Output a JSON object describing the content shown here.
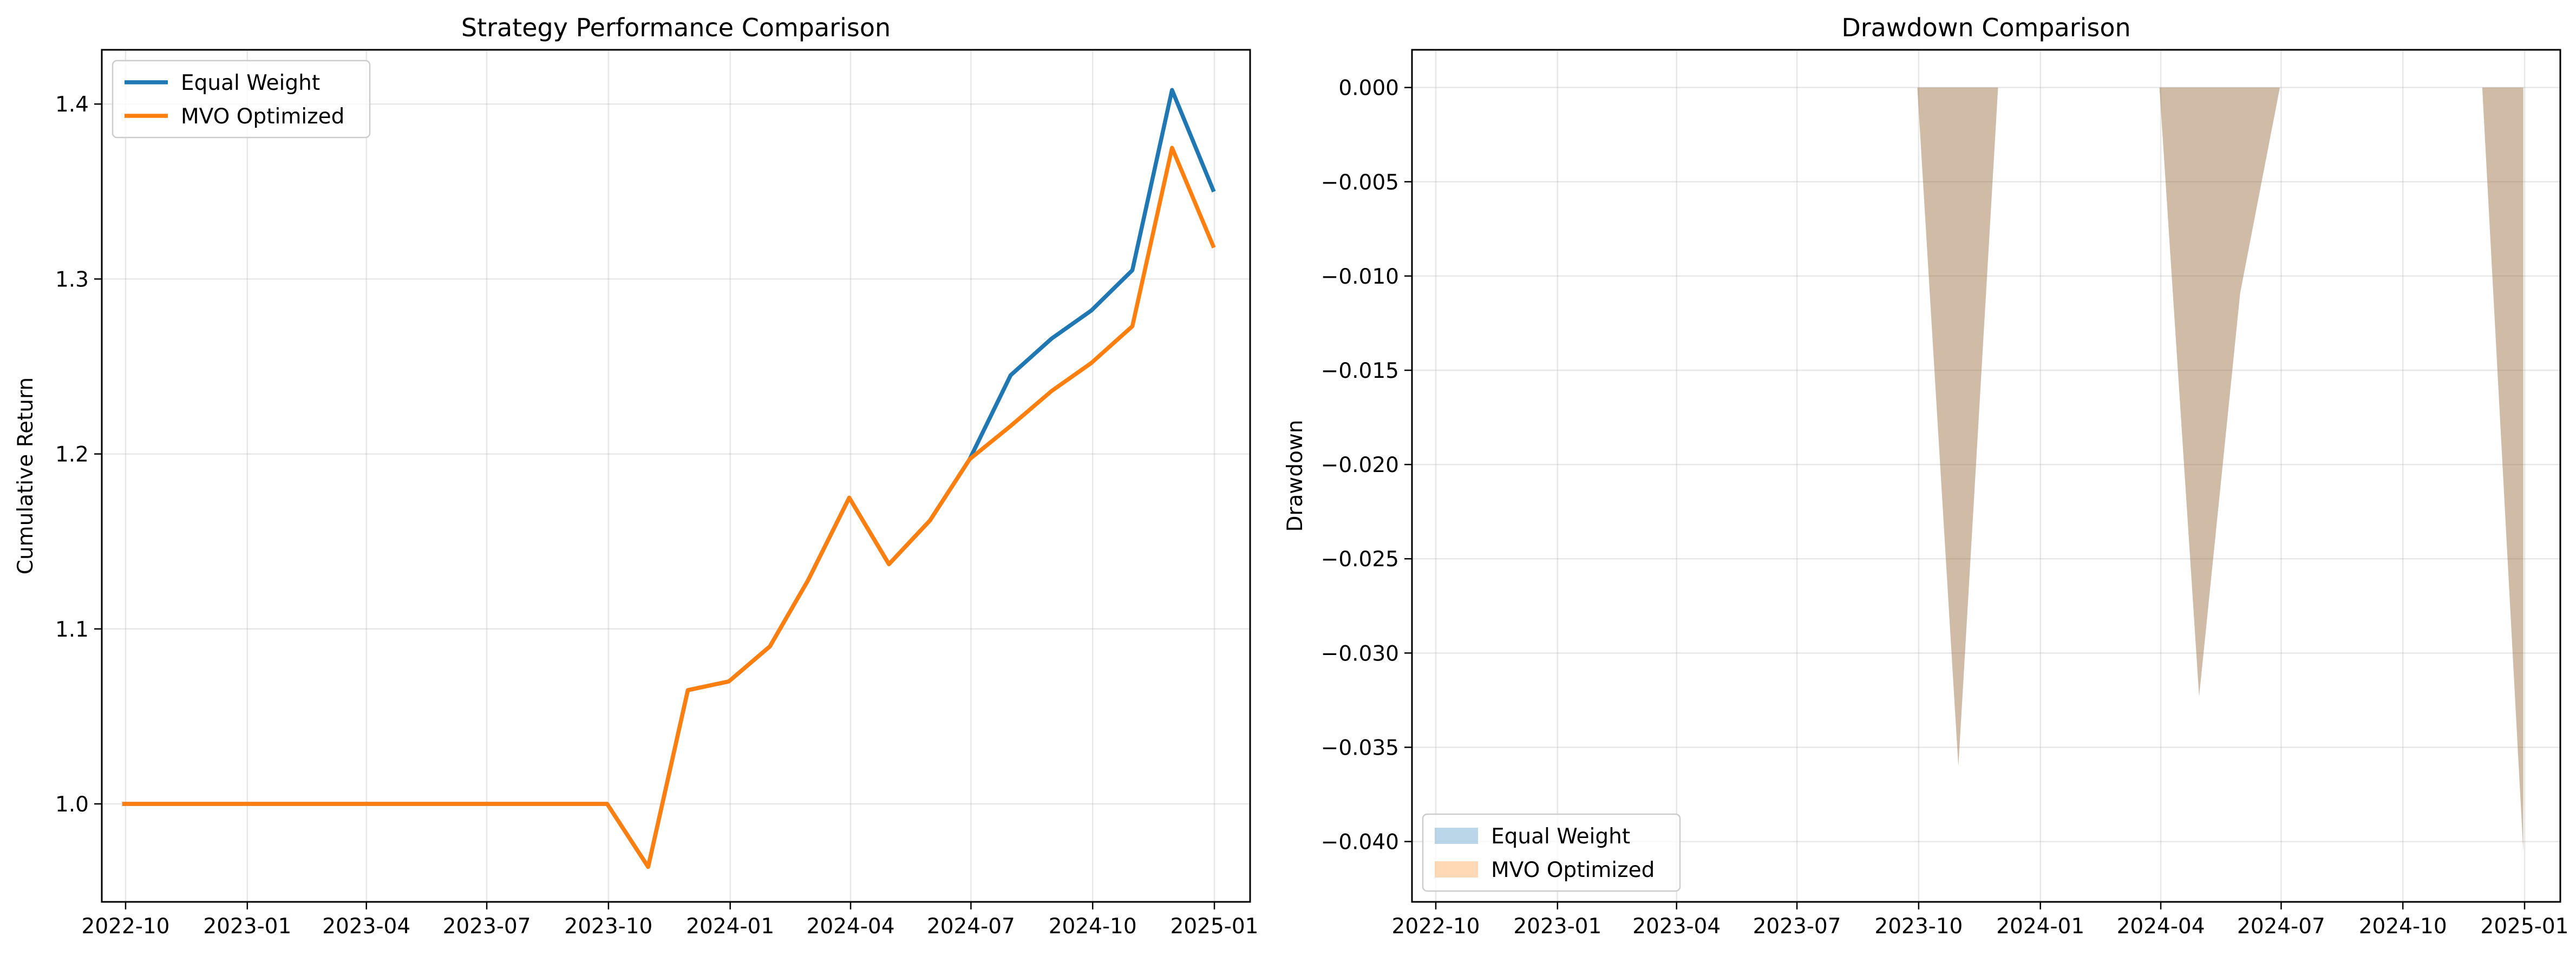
{
  "chart_data": [
    {
      "type": "line",
      "title": "Strategy Performance Comparison",
      "xlabel": "",
      "ylabel": "Cumulative Return",
      "grid": true,
      "legend_position": "upper-left",
      "xlim": [
        "2022-09-13",
        "2025-01-28"
      ],
      "ylim": [
        0.944,
        1.431
      ],
      "x_ticks": [
        "2022-10",
        "2023-01",
        "2023-04",
        "2023-07",
        "2023-10",
        "2024-01",
        "2024-04",
        "2024-07",
        "2024-10",
        "2025-01"
      ],
      "y_ticks": [
        "1.0",
        "1.1",
        "1.2",
        "1.3",
        "1.4"
      ],
      "x": [
        "2022-09-30",
        "2023-09-30",
        "2023-10-31",
        "2023-11-30",
        "2023-12-31",
        "2024-01-31",
        "2024-02-29",
        "2024-03-31",
        "2024-04-30",
        "2024-05-31",
        "2024-06-30",
        "2024-07-31",
        "2024-08-31",
        "2024-09-30",
        "2024-10-31",
        "2024-11-30",
        "2024-12-31"
      ],
      "series": [
        {
          "name": "Equal Weight",
          "color": "#1f77b4",
          "values": [
            1.0,
            1.0,
            0.964,
            1.065,
            1.07,
            1.09,
            1.128,
            1.175,
            1.137,
            1.162,
            1.197,
            1.245,
            1.266,
            1.282,
            1.305,
            1.408,
            1.351
          ]
        },
        {
          "name": "MVO Optimized",
          "color": "#ff7f0e",
          "values": [
            1.0,
            1.0,
            0.964,
            1.065,
            1.07,
            1.09,
            1.128,
            1.175,
            1.137,
            1.162,
            1.197,
            1.216,
            1.236,
            1.252,
            1.273,
            1.375,
            1.319
          ]
        }
      ]
    },
    {
      "type": "area",
      "title": "Drawdown Comparison",
      "xlabel": "",
      "ylabel": "Drawdown",
      "grid": true,
      "legend_position": "lower-left",
      "xlim": [
        "2022-09-13",
        "2025-01-28"
      ],
      "ylim": [
        -0.0432,
        0.002
      ],
      "x_ticks": [
        "2022-10",
        "2023-01",
        "2023-04",
        "2023-07",
        "2023-10",
        "2024-01",
        "2024-04",
        "2024-07",
        "2024-10",
        "2025-01"
      ],
      "y_ticks": [
        "0.000",
        "−0.005",
        "−0.010",
        "−0.015",
        "−0.020",
        "−0.025",
        "−0.030",
        "−0.035",
        "−0.040"
      ],
      "x": [
        "2022-09-30",
        "2023-09-30",
        "2023-10-31",
        "2023-11-30",
        "2023-12-31",
        "2024-01-31",
        "2024-02-29",
        "2024-03-31",
        "2024-04-30",
        "2024-05-31",
        "2024-06-30",
        "2024-07-31",
        "2024-08-31",
        "2024-09-30",
        "2024-10-31",
        "2024-11-30",
        "2024-12-31"
      ],
      "series": [
        {
          "name": "Equal Weight",
          "color": "#1f77b4",
          "values": [
            0.0,
            0.0,
            -0.036,
            0.0,
            0.0,
            0.0,
            0.0,
            0.0,
            -0.0323,
            -0.0109,
            0.0,
            0.0,
            0.0,
            0.0,
            0.0,
            0.0,
            -0.0405
          ]
        },
        {
          "name": "MVO Optimized",
          "color": "#ff7f0e",
          "values": [
            0.0,
            0.0,
            -0.036,
            0.0,
            0.0,
            0.0,
            0.0,
            0.0,
            -0.0323,
            -0.0109,
            0.0,
            0.0,
            0.0,
            0.0,
            0.0,
            0.0,
            -0.0405
          ]
        }
      ]
    }
  ]
}
